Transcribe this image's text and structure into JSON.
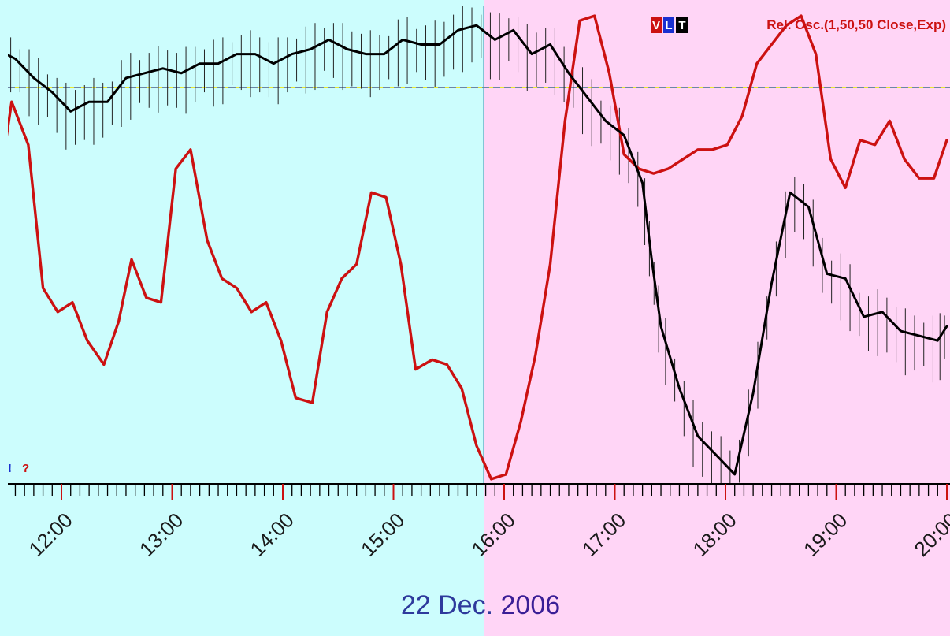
{
  "chart_data": {
    "type": "line",
    "title": "Rel. Osc.(1,50,50 Close,Exp)",
    "legend_badges": [
      "V",
      "L",
      "T"
    ],
    "date_label_part1": "22 Dec.",
    "date_label_part2": "2006",
    "corner_marks": [
      "!",
      "?"
    ],
    "x_tick_labels": [
      "12:00",
      "13:00",
      "14:00",
      "15:00",
      "16:00",
      "17:00",
      "18:00",
      "19:00",
      "20:00"
    ],
    "xlim": [
      "11:25",
      "20:00"
    ],
    "session_split": "15:49",
    "ylim": [
      0,
      100
    ],
    "reference_level": 83,
    "grid": false,
    "series": [
      {
        "color": "#cc1111",
        "x": [
          "11:25",
          "11:33",
          "11:42",
          "11:50",
          "11:58",
          "12:06",
          "12:14",
          "12:23",
          "12:31",
          "12:38",
          "12:46",
          "12:54",
          "13:02",
          "13:10",
          "13:19",
          "13:27",
          "13:35",
          "13:43",
          "13:51",
          "13:59",
          "14:07",
          "14:16",
          "14:24",
          "14:32",
          "14:40",
          "14:48",
          "14:56",
          "15:04",
          "15:12",
          "15:21",
          "15:29",
          "15:37",
          "15:45",
          "15:53",
          "16:01",
          "16:09",
          "16:17",
          "16:25",
          "16:33",
          "16:41",
          "16:49",
          "16:57",
          "17:05",
          "17:13",
          "17:21",
          "17:29",
          "17:37",
          "17:45",
          "17:53",
          "18:01",
          "18:09",
          "18:17",
          "18:25",
          "18:33",
          "18:41",
          "18:49",
          "18:57",
          "19:05",
          "19:13",
          "19:21",
          "19:29",
          "19:37",
          "19:45",
          "19:53",
          "20:00"
        ],
        "values": [
          59,
          80,
          71,
          41,
          36,
          38,
          30,
          25,
          34,
          47,
          39,
          38,
          66,
          70,
          51,
          43,
          41,
          36,
          38,
          30,
          18,
          17,
          36,
          43,
          46,
          61,
          60,
          46,
          24,
          26,
          25,
          20,
          8,
          1,
          2,
          13,
          27,
          46,
          76,
          97,
          98,
          86,
          69,
          66,
          65,
          66,
          68,
          70,
          70,
          71,
          77,
          88,
          92,
          96,
          98,
          90,
          68,
          62,
          72,
          71,
          76,
          68,
          64,
          64,
          72
        ]
      },
      {
        "color": "#000000",
        "x": [
          "11:25",
          "11:35",
          "11:45",
          "11:55",
          "12:05",
          "12:15",
          "12:25",
          "12:35",
          "12:45",
          "12:55",
          "13:05",
          "13:15",
          "13:25",
          "13:35",
          "13:45",
          "13:55",
          "14:05",
          "14:15",
          "14:25",
          "14:35",
          "14:45",
          "14:55",
          "15:05",
          "15:15",
          "15:25",
          "15:35",
          "15:45",
          "15:55",
          "16:05",
          "16:15",
          "16:25",
          "16:35",
          "16:45",
          "16:55",
          "17:05",
          "17:15",
          "17:20",
          "17:25",
          "17:35",
          "17:45",
          "17:55",
          "18:05",
          "18:15",
          "18:25",
          "18:35",
          "18:45",
          "18:55",
          "19:05",
          "19:15",
          "19:25",
          "19:35",
          "19:45",
          "19:55",
          "20:00"
        ],
        "values": [
          91,
          89,
          85,
          82,
          78,
          80,
          80,
          85,
          86,
          87,
          86,
          88,
          88,
          90,
          90,
          88,
          90,
          91,
          93,
          91,
          90,
          90,
          93,
          92,
          92,
          95,
          96,
          93,
          95,
          90,
          92,
          86,
          81,
          76,
          73,
          63,
          47,
          33,
          20,
          10,
          6,
          2,
          19,
          42,
          61,
          58,
          44,
          43,
          35,
          36,
          32,
          31,
          30,
          33
        ]
      }
    ]
  }
}
